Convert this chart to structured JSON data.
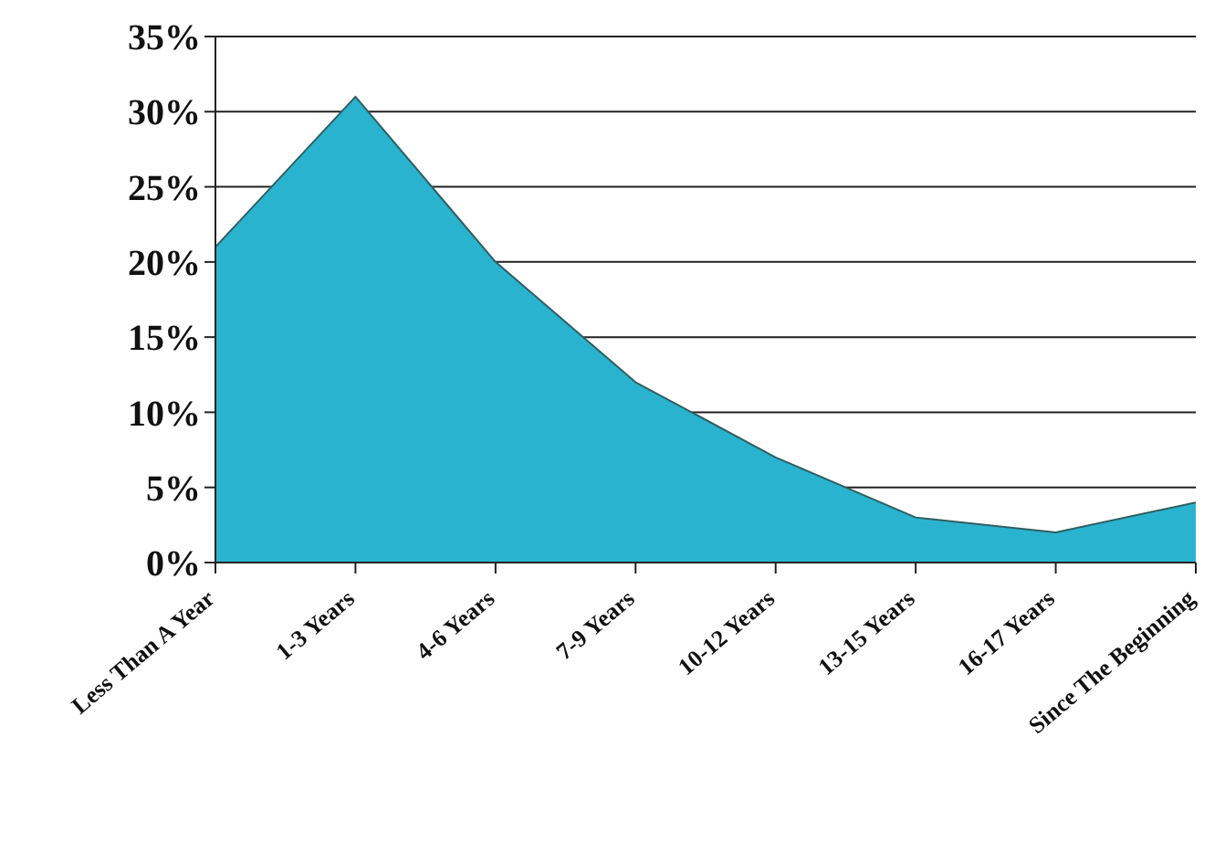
{
  "chart_data": {
    "type": "area",
    "categories": [
      "Less Than A Year",
      "1-3 Years",
      "4-6 Years",
      "7-9 Years",
      "10-12 Years",
      "13-15 Years",
      "16-17 Years",
      "Since The Beginning"
    ],
    "values": [
      21,
      31,
      20,
      12,
      7,
      3,
      2,
      4
    ],
    "color": "#2ab3cf",
    "ylim": [
      0,
      35
    ],
    "yticks": [
      {
        "value": 0,
        "label": "0%"
      },
      {
        "value": 5,
        "label": "5%"
      },
      {
        "value": 10,
        "label": "10%"
      },
      {
        "value": 15,
        "label": "15%"
      },
      {
        "value": 20,
        "label": "20%"
      },
      {
        "value": 25,
        "label": "25%"
      },
      {
        "value": 30,
        "label": "30%"
      },
      {
        "value": 35,
        "label": "35%"
      }
    ],
    "grid": "y"
  }
}
